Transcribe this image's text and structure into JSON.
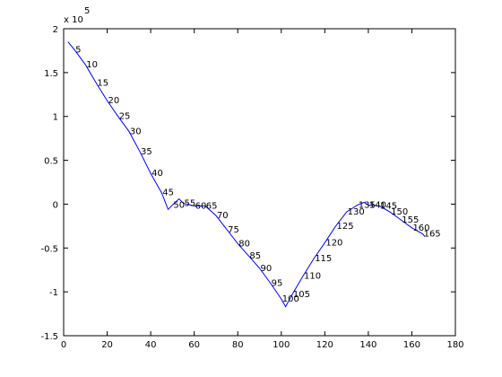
{
  "chart_data": {
    "type": "line",
    "y_multiplier": {
      "base": "x 10",
      "exponent": "5"
    },
    "x": [
      2,
      5,
      10,
      15,
      20,
      25,
      30,
      35,
      40,
      45,
      48,
      50,
      53,
      55,
      60,
      65,
      70,
      75,
      80,
      85,
      90,
      95,
      100,
      102,
      105,
      110,
      115,
      120,
      125,
      130,
      135,
      138,
      140,
      145,
      150,
      155,
      160,
      165,
      166
    ],
    "values": [
      1.85,
      1.76,
      1.59,
      1.38,
      1.18,
      1.0,
      0.83,
      0.6,
      0.35,
      0.13,
      -0.06,
      -0.01,
      0.06,
      0.01,
      -0.02,
      -0.02,
      -0.13,
      -0.29,
      -0.45,
      -0.59,
      -0.73,
      -0.9,
      -1.08,
      -1.17,
      -1.03,
      -0.82,
      -0.62,
      -0.44,
      -0.25,
      -0.09,
      -0.01,
      0.02,
      -0.01,
      -0.02,
      -0.09,
      -0.18,
      -0.27,
      -0.34,
      -0.37
    ],
    "point_labels": [
      null,
      "5",
      "10",
      "15",
      "20",
      "25",
      "30",
      "35",
      "40",
      "45",
      null,
      "50",
      null,
      "55",
      "60",
      "65",
      "70",
      "75",
      "80",
      "85",
      "90",
      "95",
      "100",
      null,
      "105",
      "110",
      "115",
      "120",
      "125",
      "130",
      "135",
      null,
      "140",
      "145",
      "150",
      "155",
      "160",
      "165",
      null
    ],
    "color": "#0000ff",
    "xlim": [
      0,
      180
    ],
    "xticks": [
      0,
      20,
      40,
      60,
      80,
      100,
      120,
      140,
      160,
      180
    ],
    "ylim": [
      -1.5,
      2
    ],
    "yticks": [
      -1.5,
      -1,
      -0.5,
      0,
      0.5,
      1,
      1.5,
      2
    ],
    "grid": false
  }
}
